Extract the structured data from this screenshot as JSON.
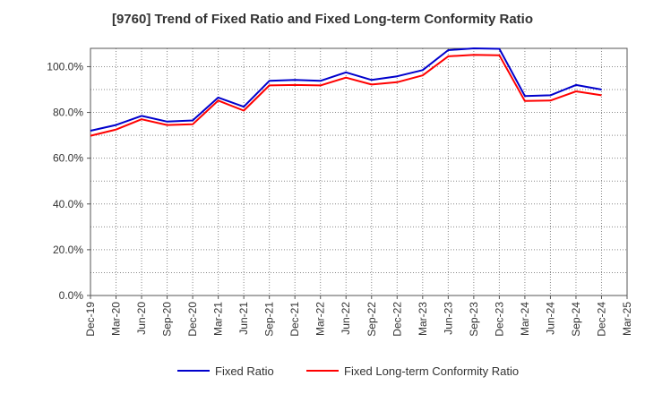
{
  "chart_data": {
    "type": "line",
    "title": "[9760]  Trend of Fixed Ratio and Fixed Long-term Conformity Ratio",
    "xlabel": "",
    "ylabel": "",
    "categories": [
      "Dec-19",
      "Mar-20",
      "Jun-20",
      "Sep-20",
      "Dec-20",
      "Mar-21",
      "Jun-21",
      "Sep-21",
      "Dec-21",
      "Mar-22",
      "Jun-22",
      "Sep-22",
      "Dec-22",
      "Mar-23",
      "Jun-23",
      "Sep-23",
      "Dec-23",
      "Mar-24",
      "Jun-24",
      "Sep-24",
      "Dec-24",
      "Mar-25"
    ],
    "y_ticks": [
      "0.0%",
      "20.0%",
      "40.0%",
      "60.0%",
      "80.0%",
      "100.0%"
    ],
    "ylim": [
      0,
      108
    ],
    "grid": true,
    "legend_position": "bottom",
    "series": [
      {
        "name": "Fixed Ratio",
        "color": "#0000cc",
        "values": [
          72.0,
          74.5,
          78.5,
          76.0,
          76.5,
          86.5,
          82.5,
          93.8,
          94.2,
          93.8,
          97.5,
          94.2,
          95.8,
          98.5,
          107.2,
          108.0,
          107.8,
          87.2,
          87.5,
          92.0,
          90.0,
          null
        ]
      },
      {
        "name": "Fixed Long-term Conformity Ratio",
        "color": "#ff0000",
        "values": [
          69.8,
          72.5,
          77.0,
          74.5,
          74.8,
          85.2,
          80.8,
          91.8,
          92.0,
          91.8,
          95.2,
          92.2,
          93.2,
          96.2,
          104.5,
          105.2,
          105.0,
          85.0,
          85.2,
          89.2,
          87.5,
          null
        ]
      }
    ]
  }
}
